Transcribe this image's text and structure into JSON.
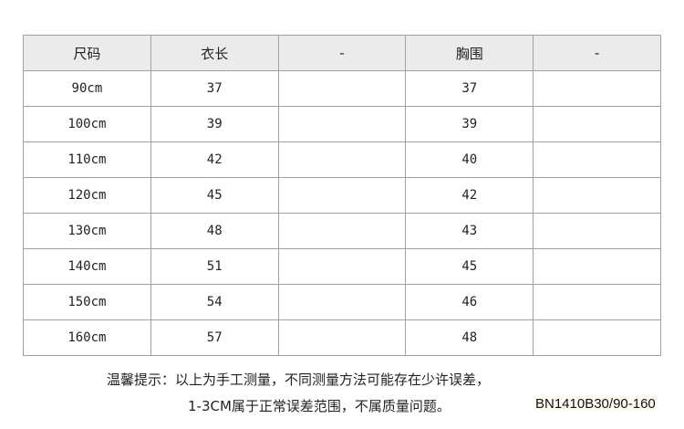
{
  "table": {
    "headers": [
      "尺码",
      "衣长",
      "-",
      "胸围",
      "-"
    ],
    "rows": [
      [
        "90cm",
        "37",
        "",
        "37",
        ""
      ],
      [
        "100cm",
        "39",
        "",
        "39",
        ""
      ],
      [
        "110cm",
        "42",
        "",
        "40",
        ""
      ],
      [
        "120cm",
        "45",
        "",
        "42",
        ""
      ],
      [
        "130cm",
        "48",
        "",
        "43",
        ""
      ],
      [
        "140cm",
        "51",
        "",
        "45",
        ""
      ],
      [
        "150cm",
        "54",
        "",
        "46",
        ""
      ],
      [
        "160cm",
        "57",
        "",
        "48",
        ""
      ]
    ]
  },
  "footer": {
    "note_line1": "温馨提示：以上为手工测量，不同测量方法可能存在少许误差，",
    "note_line2": "1-3CM属于正常误差范围，不属质量问题。",
    "product_code": "BN1410B30/90-160"
  }
}
